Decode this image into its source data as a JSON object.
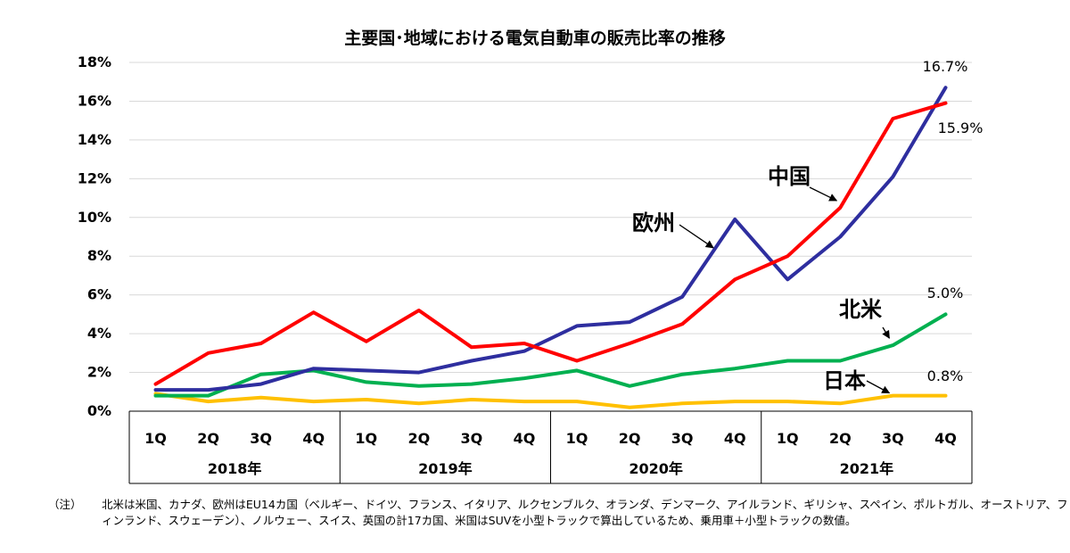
{
  "chart_data": {
    "type": "line",
    "title": "主要国･地域における電気自動車の販売比率の推移",
    "categories": [
      "1Q",
      "2Q",
      "3Q",
      "4Q",
      "1Q",
      "2Q",
      "3Q",
      "4Q",
      "1Q",
      "2Q",
      "3Q",
      "4Q",
      "1Q",
      "2Q",
      "3Q",
      "4Q"
    ],
    "years": [
      "2018年",
      "2019年",
      "2020年",
      "2021年"
    ],
    "ylim": [
      0,
      18
    ],
    "yticks": [
      "0%",
      "2%",
      "4%",
      "6%",
      "8%",
      "10%",
      "12%",
      "14%",
      "16%",
      "18%"
    ],
    "xlabel": "",
    "ylabel": "",
    "grid": true,
    "series": [
      {
        "name": "中国",
        "color": "#ff0000",
        "values": [
          1.4,
          3.0,
          3.5,
          5.1,
          3.6,
          5.2,
          3.3,
          3.5,
          2.6,
          3.5,
          4.5,
          6.8,
          8.0,
          10.5,
          15.1,
          15.9
        ]
      },
      {
        "name": "欧州",
        "color": "#2e2e9f",
        "values": [
          1.1,
          1.1,
          1.4,
          2.2,
          2.1,
          2.0,
          2.6,
          3.1,
          4.4,
          4.6,
          5.9,
          9.9,
          6.8,
          9.0,
          12.1,
          16.7
        ]
      },
      {
        "name": "北米",
        "color": "#00b050",
        "values": [
          0.8,
          0.8,
          1.9,
          2.1,
          1.5,
          1.3,
          1.4,
          1.7,
          2.1,
          1.3,
          1.9,
          2.2,
          2.6,
          2.6,
          3.4,
          5.0
        ]
      },
      {
        "name": "日本",
        "color": "#ffc000",
        "values": [
          0.9,
          0.5,
          0.7,
          0.5,
          0.6,
          0.4,
          0.6,
          0.5,
          0.5,
          0.2,
          0.4,
          0.5,
          0.5,
          0.4,
          0.8,
          0.8
        ]
      }
    ],
    "annotations": [
      {
        "series": "欧州",
        "text": "16.7%"
      },
      {
        "series": "中国",
        "text": "15.9%"
      },
      {
        "series": "北米",
        "text": "5.0%"
      },
      {
        "series": "日本",
        "text": "0.8%"
      }
    ]
  },
  "note": {
    "mark": "（注）",
    "text": "北米は米国、カナダ、欧州はEU14カ国（ベルギー、ドイツ、フランス、イタリア、ルクセンブルク、オランダ、デンマーク、アイルランド、ギリシャ、スペイン、ポルトガル、オーストリア、フィンランド、スウェーデン）、ノルウェー、スイス、英国の計17カ国、米国はSUVを小型トラックで算出しているため、乗用車＋小型トラックの数値。"
  }
}
